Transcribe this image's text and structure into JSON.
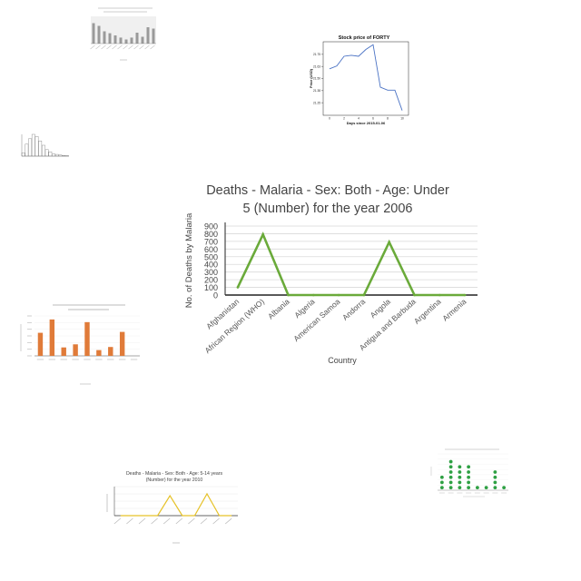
{
  "chart_data": [
    {
      "id": "malaria-under5-2006",
      "type": "line",
      "title": "Deaths - Malaria - Sex: Both - Age: Under 5 (Number) for the year 2006",
      "title_lines": [
        "Deaths - Malaria - Sex: Both - Age: Under",
        "5 (Number) for the year 2006"
      ],
      "xlabel": "Country",
      "ylabel": "No. of Deaths by Malaria",
      "categories": [
        "Afghanistan",
        "African Region (WHO)",
        "Albania",
        "Algeria",
        "American Samoa",
        "Andorra",
        "Angola",
        "Antigua and Barbuda",
        "Argentina",
        "Armenia"
      ],
      "values": [
        100,
        790,
        0,
        0,
        0,
        0,
        690,
        0,
        0,
        0
      ],
      "ylim": [
        0,
        900
      ],
      "yticks": [
        0,
        100,
        200,
        300,
        400,
        500,
        600,
        700,
        800,
        900
      ],
      "grid": true,
      "color": "#6aaa3a"
    },
    {
      "id": "stock-price-forty",
      "type": "line",
      "title": "Stock price of FORTY",
      "xlabel": "Days since 2015-01-06",
      "ylabel": "Price (USD)",
      "x": [
        0,
        1,
        2,
        3,
        4,
        5,
        6,
        7,
        8,
        9,
        10
      ],
      "values": [
        21.6,
        21.63,
        21.73,
        21.74,
        21.73,
        21.8,
        21.85,
        21.41,
        21.38,
        21.38,
        21.17
      ],
      "ylim": [
        21.12,
        21.88
      ],
      "yticks": [
        21.75,
        21.625,
        21.5,
        21.375,
        21.25
      ],
      "ytick_labels": [
        "21.75",
        "21.63",
        "21.50",
        "21.38",
        "21.25"
      ],
      "xticks": [
        0,
        2,
        4,
        6,
        8,
        10
      ],
      "color": "#4a72c4"
    },
    {
      "id": "malaria-5-14-2010",
      "type": "line",
      "title": "Deaths - Malaria - Sex: Both - Age: 5-14 years (Number) for the year 2010",
      "title_lines": [
        "Deaths - Malaria - Sex: Both - Age: 5-14 years",
        "(Number) for the year 2010"
      ],
      "xlabel": "Country",
      "ylabel": "No. of Deaths by Malaria",
      "categories": [
        "",
        "",
        "",
        "",
        "",
        "",
        "",
        "",
        "",
        ""
      ],
      "values": [
        0,
        0,
        0,
        0,
        55,
        0,
        0,
        60,
        0,
        0
      ],
      "ylim": [
        0,
        80
      ],
      "color": "#e6c229"
    },
    {
      "id": "dalys-orange-bars",
      "type": "bar",
      "title": "",
      "categories": [
        "",
        "",
        "",
        "",
        "",
        "",
        "",
        "",
        ""
      ],
      "values": [
        2600,
        4100,
        950,
        1300,
        3800,
        650,
        1000,
        2700,
        0
      ],
      "ylim": [
        0,
        4500
      ],
      "color": "#e07b39"
    },
    {
      "id": "gray-bars-top",
      "type": "bar",
      "title": "",
      "categories": [
        "",
        "",
        "",
        "",
        "",
        "",
        "",
        "",
        "",
        "",
        "",
        ""
      ],
      "values": [
        75,
        65,
        45,
        38,
        30,
        22,
        15,
        22,
        40,
        25,
        60,
        55
      ],
      "ylim": [
        0,
        100
      ],
      "color": "#9a9a9a"
    },
    {
      "id": "gray-histogram-left",
      "type": "bar",
      "title": "",
      "categories": [
        "",
        "",
        "",
        "",
        "",
        "",
        "",
        "",
        "",
        "",
        "",
        "",
        "",
        ""
      ],
      "values": [
        15,
        55,
        80,
        100,
        90,
        70,
        50,
        30,
        20,
        10,
        8,
        5,
        3,
        2
      ],
      "ylim": [
        0,
        100
      ],
      "color": "#9a9a9a"
    },
    {
      "id": "green-dot-plot",
      "type": "scatter",
      "title": "",
      "categories": [
        "",
        "",
        "",
        "",
        "",
        "",
        "",
        ""
      ],
      "values": [
        3,
        6,
        5,
        5,
        1,
        1,
        4,
        1
      ],
      "ylim": [
        0,
        7
      ],
      "color": "#2ea043"
    }
  ]
}
